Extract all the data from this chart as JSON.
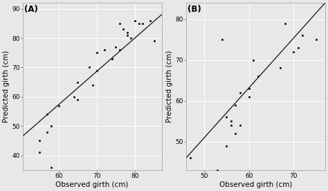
{
  "panel_A": {
    "label": "(A)",
    "observed": [
      55,
      55,
      57,
      57,
      58,
      58,
      60,
      64,
      65,
      65,
      68,
      69,
      70,
      70,
      72,
      74,
      75,
      76,
      76,
      77,
      78,
      78,
      79,
      80,
      81,
      82,
      84,
      85
    ],
    "predicted": [
      45,
      41,
      54,
      48,
      36,
      50,
      57,
      60,
      65,
      59,
      70,
      64,
      69,
      75,
      76,
      73,
      77,
      76,
      85,
      83,
      82,
      81,
      80,
      86,
      85,
      85,
      86,
      79
    ],
    "line_x": [
      50,
      87
    ],
    "line_y": [
      46,
      88
    ],
    "xlabel": "Observed girth (cm)",
    "ylabel": "Predicted girth (cm)",
    "xlim": [
      50.5,
      87
    ],
    "ylim": [
      35,
      92
    ],
    "xticks": [
      60,
      70,
      80
    ],
    "yticks": [
      40,
      50,
      60,
      70,
      80,
      90
    ]
  },
  "panel_B": {
    "label": "(B)",
    "observed": [
      47,
      53,
      54,
      55,
      55,
      56,
      56,
      57,
      57,
      58,
      58,
      60,
      60,
      61,
      62,
      67,
      68,
      70,
      71,
      72,
      75
    ],
    "predicted": [
      46,
      43,
      75,
      49,
      56,
      55,
      54,
      52,
      59,
      62,
      54,
      63,
      61,
      70,
      66,
      68,
      79,
      72,
      73,
      76,
      75
    ],
    "line_x": [
      46,
      77
    ],
    "line_y": [
      46,
      84
    ],
    "xlabel": "Observed girth (cm)",
    "ylabel": "Predicted girth (cm)",
    "xlim": [
      46,
      77
    ],
    "ylim": [
      43,
      84
    ],
    "xticks": [
      50,
      60,
      70
    ],
    "yticks": [
      50,
      60,
      70,
      80
    ]
  },
  "bg_color": "#E8E8E8",
  "grid_color": "#FFFFFF",
  "point_color": "#1a1a1a",
  "line_color": "#111111",
  "point_size": 5,
  "line_width": 0.9,
  "tick_fontsize": 6.5,
  "label_fontsize": 7.5,
  "panel_label_fontsize": 8.5
}
